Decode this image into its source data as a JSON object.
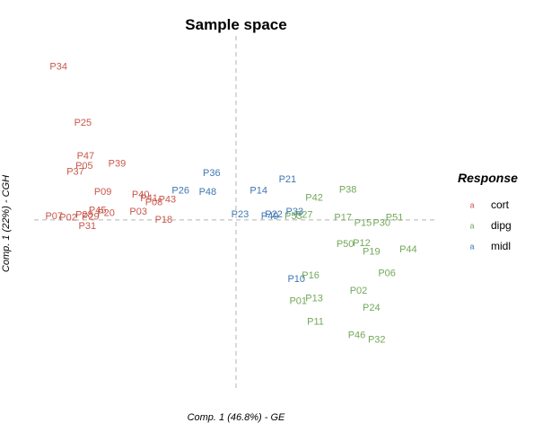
{
  "chart_data": {
    "type": "scatter",
    "title": "Sample space",
    "xlabel": "Comp. 1 (46.8%) - GE",
    "ylabel": "Comp. 1 (22%) - CGH",
    "xlim": [
      -45.5,
      45.5
    ],
    "ylim": [
      -48,
      52
    ],
    "grid": false,
    "reference_lines": {
      "x": 0,
      "y": 0
    },
    "legend": {
      "title": "Response",
      "position": "right",
      "key_glyph": "a",
      "entries": [
        {
          "name": "cort",
          "color": "#c8584a"
        },
        {
          "name": "dipg",
          "color": "#72a859"
        },
        {
          "name": "midl",
          "color": "#3f77b3"
        }
      ]
    },
    "series": [
      {
        "name": "cort",
        "color": "#c8584a",
        "points": [
          {
            "label": "P34",
            "x": -40.0,
            "y": 43.2
          },
          {
            "label": "P25",
            "x": -34.5,
            "y": 27.4
          },
          {
            "label": "P47",
            "x": -33.9,
            "y": 18.0
          },
          {
            "label": "P05",
            "x": -34.2,
            "y": 15.2
          },
          {
            "label": "P39",
            "x": -26.8,
            "y": 15.8
          },
          {
            "label": "P37",
            "x": -36.2,
            "y": 13.5
          },
          {
            "label": "P09",
            "x": -30.0,
            "y": 7.8
          },
          {
            "label": "P40",
            "x": -21.5,
            "y": 7.0
          },
          {
            "label": "P41",
            "x": -19.6,
            "y": 6.1
          },
          {
            "label": "P43",
            "x": -15.5,
            "y": 5.6
          },
          {
            "label": "P08",
            "x": -18.5,
            "y": 4.9
          },
          {
            "label": "P45",
            "x": -31.2,
            "y": 2.6
          },
          {
            "label": "P20",
            "x": -29.3,
            "y": 1.8
          },
          {
            "label": "P03",
            "x": -22.0,
            "y": 2.2
          },
          {
            "label": "P07",
            "x": -41.0,
            "y": 1.0
          },
          {
            "label": "P28",
            "x": -34.2,
            "y": 1.3
          },
          {
            "label": "P02",
            "x": -37.8,
            "y": 0.6
          },
          {
            "label": "P29",
            "x": -32.8,
            "y": 0.8
          },
          {
            "label": "P18",
            "x": -16.3,
            "y": 0.0
          },
          {
            "label": "P31",
            "x": -33.5,
            "y": -1.8
          }
        ]
      },
      {
        "name": "dipg",
        "color": "#72a859",
        "points": [
          {
            "label": "P38",
            "x": 25.2,
            "y": 8.4
          },
          {
            "label": "P42",
            "x": 17.6,
            "y": 6.2
          },
          {
            "label": "P53",
            "x": 12.9,
            "y": 0.9
          },
          {
            "label": "P27",
            "x": 15.3,
            "y": 1.3
          },
          {
            "label": "P17",
            "x": 24.1,
            "y": 0.6
          },
          {
            "label": "P51",
            "x": 35.7,
            "y": 0.6
          },
          {
            "label": "P15",
            "x": 28.6,
            "y": -0.9
          },
          {
            "label": "P30",
            "x": 32.8,
            "y": -0.9
          },
          {
            "label": "P50",
            "x": 24.6,
            "y": -6.9
          },
          {
            "label": "P12",
            "x": 28.3,
            "y": -6.7
          },
          {
            "label": "P19",
            "x": 30.5,
            "y": -9.1
          },
          {
            "label": "P44",
            "x": 38.8,
            "y": -8.4
          },
          {
            "label": "P16",
            "x": 16.8,
            "y": -15.8
          },
          {
            "label": "P06",
            "x": 34.0,
            "y": -15.1
          },
          {
            "label": "P02",
            "x": 27.6,
            "y": -20.1
          },
          {
            "label": "P01",
            "x": 14.0,
            "y": -23.0
          },
          {
            "label": "P13",
            "x": 17.6,
            "y": -22.3
          },
          {
            "label": "P24",
            "x": 30.5,
            "y": -24.9
          },
          {
            "label": "P11",
            "x": 17.9,
            "y": -28.9
          },
          {
            "label": "P46",
            "x": 27.2,
            "y": -32.7
          },
          {
            "label": "P32",
            "x": 31.7,
            "y": -33.9
          }
        ]
      },
      {
        "name": "midl",
        "color": "#3f77b3",
        "points": [
          {
            "label": "P36",
            "x": -5.5,
            "y": 13.1
          },
          {
            "label": "P21",
            "x": 11.6,
            "y": 11.4
          },
          {
            "label": "P26",
            "x": -12.5,
            "y": 8.2
          },
          {
            "label": "P48",
            "x": -6.4,
            "y": 7.8
          },
          {
            "label": "P14",
            "x": 5.1,
            "y": 8.2
          },
          {
            "label": "P33",
            "x": 13.2,
            "y": 2.2
          },
          {
            "label": "P23",
            "x": 0.9,
            "y": 1.5
          },
          {
            "label": "P22",
            "x": 8.5,
            "y": 1.5
          },
          {
            "label": "P49",
            "x": 7.6,
            "y": 1.0
          },
          {
            "label": "P10",
            "x": 13.6,
            "y": -16.8
          }
        ]
      }
    ]
  }
}
